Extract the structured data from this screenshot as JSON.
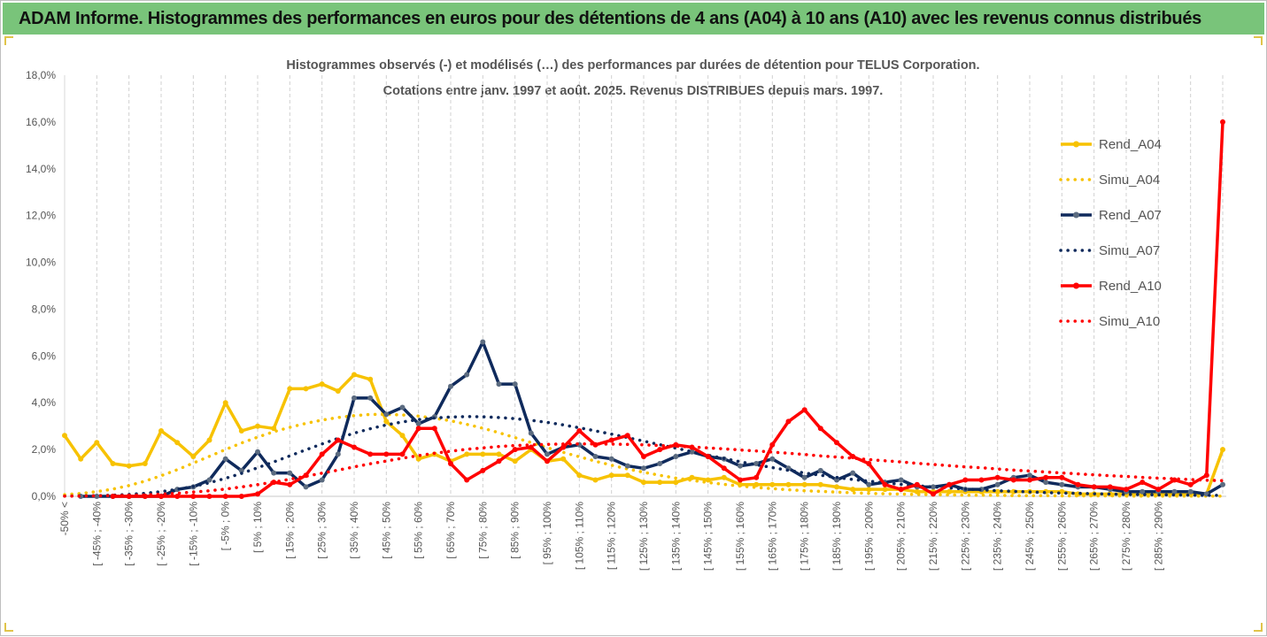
{
  "banner": {
    "title": "ADAM Informe. Histogrammes des performances en euros pour des détentions de 4 ans (A04) à 10 ans (A10) avec les revenus connus distribués"
  },
  "chart_data": {
    "type": "line",
    "title": "Histogrammes observés (-) et modélisés (…) des performances par durées de détention pour TELUS Corporation.",
    "subtitle": "Cotations entre janv. 1997 et août. 2025. Revenus DISTRIBUES depuis mars. 1997.",
    "xlabel": "",
    "ylabel": "",
    "ylim": [
      0,
      18
    ],
    "y_ticks": [
      "0,0%",
      "2,0%",
      "4,0%",
      "6,0%",
      "8,0%",
      "10,0%",
      "12,0%",
      "14,0%",
      "16,0%",
      "18,0%"
    ],
    "x_tick_labels": [
      "-50% <",
      "[ -45% ; -40%",
      "[ -35% ; -30%",
      "[ -25% ; -20%",
      "[ -15% ; -10%",
      "[ -5% ; 0%",
      "[ 5% ; 10%",
      "[ 15% ; 20%",
      "[ 25% ; 30%",
      "[ 35% ; 40%",
      "[ 45% ; 50%",
      "[ 55% ; 60%",
      "[ 65% ; 70%",
      "[ 75% ; 80%",
      "[ 85% ; 90%",
      "[ 95% ; 100%",
      "[ 105% ; 110%",
      "[ 115% ; 120%",
      "[ 125% ; 130%",
      "[ 135% ; 140%",
      "[ 145% ; 150%",
      "[ 155% ; 160%",
      "[ 165% ; 170%",
      "[ 175% ; 180%",
      "[ 185% ; 190%",
      "[ 195% ; 200%",
      "[ 205% ; 210%",
      "[ 215% ; 220%",
      "[ 225% ; 230%",
      "[ 235% ; 240%",
      "[ 245% ; 250%",
      "[ 255% ; 260%",
      "[ 265% ; 270%",
      "[ 275% ; 280%",
      "[ 285% ; 290%"
    ],
    "grid": "vertical dashed",
    "legend_position": "right",
    "series": [
      {
        "name": "Rend_A04",
        "style": "solid",
        "color": "#f7c200",
        "values": [
          2.6,
          1.6,
          2.3,
          1.4,
          1.3,
          1.4,
          2.8,
          2.3,
          1.7,
          2.4,
          4.0,
          2.8,
          3.0,
          2.9,
          4.6,
          4.6,
          4.8,
          4.5,
          5.2,
          5.0,
          3.2,
          2.6,
          1.6,
          1.8,
          1.5,
          1.8,
          1.8,
          1.8,
          1.5,
          2.0,
          1.5,
          1.6,
          0.9,
          0.7,
          0.9,
          0.9,
          0.6,
          0.6,
          0.6,
          0.8,
          0.7,
          0.8,
          0.5,
          0.5,
          0.5,
          0.5,
          0.5,
          0.5,
          0.4,
          0.3,
          0.3,
          0.3,
          0.3,
          0.2,
          0.2,
          0.2,
          0.2,
          0.2,
          0.2,
          0.2,
          0.2,
          0.2,
          0.2,
          0.1,
          0.1,
          0.1,
          0.1,
          0.1,
          0.1,
          0.1,
          0.1,
          0.1,
          2.0
        ]
      },
      {
        "name": "Simu_A04",
        "style": "dotted",
        "color": "#f7c200",
        "values": [
          0.07,
          0.12,
          0.2,
          0.31,
          0.46,
          0.65,
          0.88,
          1.14,
          1.42,
          1.71,
          2.0,
          2.28,
          2.53,
          2.76,
          2.95,
          3.12,
          3.26,
          3.37,
          3.45,
          3.5,
          3.5,
          3.48,
          3.43,
          3.34,
          3.23,
          3.08,
          2.91,
          2.72,
          2.51,
          2.3,
          2.08,
          1.88,
          1.69,
          1.5,
          1.33,
          1.17,
          1.03,
          0.9,
          0.78,
          0.68,
          0.59,
          0.51,
          0.44,
          0.38,
          0.33,
          0.28,
          0.24,
          0.21,
          0.18,
          0.15,
          0.13,
          0.11,
          0.1,
          0.08,
          0.07,
          0.06,
          0.05,
          0.05,
          0.04,
          0.03,
          0.03,
          0.03,
          0.02,
          0.02,
          0.02,
          0.02,
          0.01,
          0.01,
          0.01,
          0.01,
          0.01,
          0.01,
          0.01
        ]
      },
      {
        "name": "Rend_A07",
        "style": "solid",
        "color": "#0f2a5c",
        "values": [
          0,
          0,
          0,
          0,
          0,
          0,
          0.3,
          0.4,
          0.7,
          1.6,
          1.1,
          1.9,
          1.0,
          1.0,
          0.4,
          0.7,
          1.8,
          4.2,
          4.2,
          3.5,
          3.8,
          3.1,
          3.4,
          4.7,
          5.2,
          6.6,
          4.8,
          4.8,
          2.7,
          1.8,
          2.1,
          2.2,
          1.7,
          1.6,
          1.3,
          1.2,
          1.4,
          1.7,
          1.9,
          1.7,
          1.6,
          1.3,
          1.4,
          1.6,
          1.2,
          0.8,
          1.1,
          0.7,
          1.0,
          0.5,
          0.6,
          0.7,
          0.4,
          0.4,
          0.5,
          0.3,
          0.3,
          0.5,
          0.8,
          0.9,
          0.6,
          0.5,
          0.4,
          0.4,
          0.3,
          0.2,
          0.2,
          0.2,
          0.2,
          0.2,
          0.1,
          0.5
        ]
      },
      {
        "name": "Simu_A07",
        "style": "dotted",
        "color": "#0f2a5c",
        "values": [
          0.01,
          0.02,
          0.03,
          0.05,
          0.08,
          0.13,
          0.2,
          0.3,
          0.42,
          0.58,
          0.77,
          0.98,
          1.22,
          1.47,
          1.73,
          1.99,
          2.24,
          2.48,
          2.7,
          2.89,
          3.05,
          3.18,
          3.28,
          3.35,
          3.39,
          3.41,
          3.4,
          3.37,
          3.32,
          3.25,
          3.16,
          3.05,
          2.93,
          2.8,
          2.66,
          2.51,
          2.36,
          2.21,
          2.06,
          1.91,
          1.76,
          1.62,
          1.48,
          1.35,
          1.23,
          1.11,
          1.0,
          0.9,
          0.81,
          0.72,
          0.65,
          0.58,
          0.51,
          0.45,
          0.4,
          0.36,
          0.31,
          0.28,
          0.24,
          0.21,
          0.19,
          0.16,
          0.14,
          0.13,
          0.11,
          0.1,
          0.08,
          0.07,
          0.06,
          0.06,
          0.05,
          0.04,
          0.04
        ]
      },
      {
        "name": "Rend_A10",
        "style": "solid",
        "color": "#ff0000",
        "values": [
          0,
          0,
          0,
          0,
          0,
          0,
          0,
          0,
          0,
          0.1,
          0.6,
          0.5,
          0.9,
          1.8,
          2.4,
          2.1,
          1.8,
          1.8,
          1.8,
          2.9,
          2.9,
          1.4,
          0.7,
          1.1,
          1.5,
          2.0,
          2.1,
          1.5,
          2.1,
          2.8,
          2.2,
          2.4,
          2.6,
          1.7,
          2.0,
          2.2,
          2.1,
          1.7,
          1.2,
          0.7,
          0.8,
          2.2,
          3.2,
          3.7,
          2.9,
          2.3,
          1.7,
          1.4,
          0.5,
          0.3,
          0.5,
          0.1,
          0.5,
          0.7,
          0.7,
          0.8,
          0.7,
          0.7,
          0.8,
          0.8,
          0.5,
          0.4,
          0.4,
          0.3,
          0.6,
          0.3,
          0.7,
          0.5,
          0.9,
          16.0
        ]
      },
      {
        "name": "Simu_A10",
        "style": "dotted",
        "color": "#ff0000",
        "values": [
          0.01,
          0.01,
          0.02,
          0.03,
          0.04,
          0.06,
          0.09,
          0.13,
          0.18,
          0.24,
          0.31,
          0.4,
          0.5,
          0.61,
          0.73,
          0.86,
          0.99,
          1.12,
          1.26,
          1.39,
          1.51,
          1.63,
          1.74,
          1.84,
          1.93,
          2.01,
          2.07,
          2.13,
          2.17,
          2.2,
          2.22,
          2.24,
          2.24,
          2.24,
          2.23,
          2.22,
          2.2,
          2.17,
          2.14,
          2.11,
          2.07,
          2.03,
          1.98,
          1.94,
          1.89,
          1.84,
          1.79,
          1.73,
          1.68,
          1.63,
          1.57,
          1.52,
          1.47,
          1.41,
          1.36,
          1.31,
          1.26,
          1.22,
          1.17,
          1.12,
          1.08,
          1.04,
          1.0,
          0.96,
          0.92,
          0.88,
          0.85,
          0.81,
          0.78,
          0.75,
          0.72,
          0.69,
          0.67
        ]
      }
    ]
  }
}
